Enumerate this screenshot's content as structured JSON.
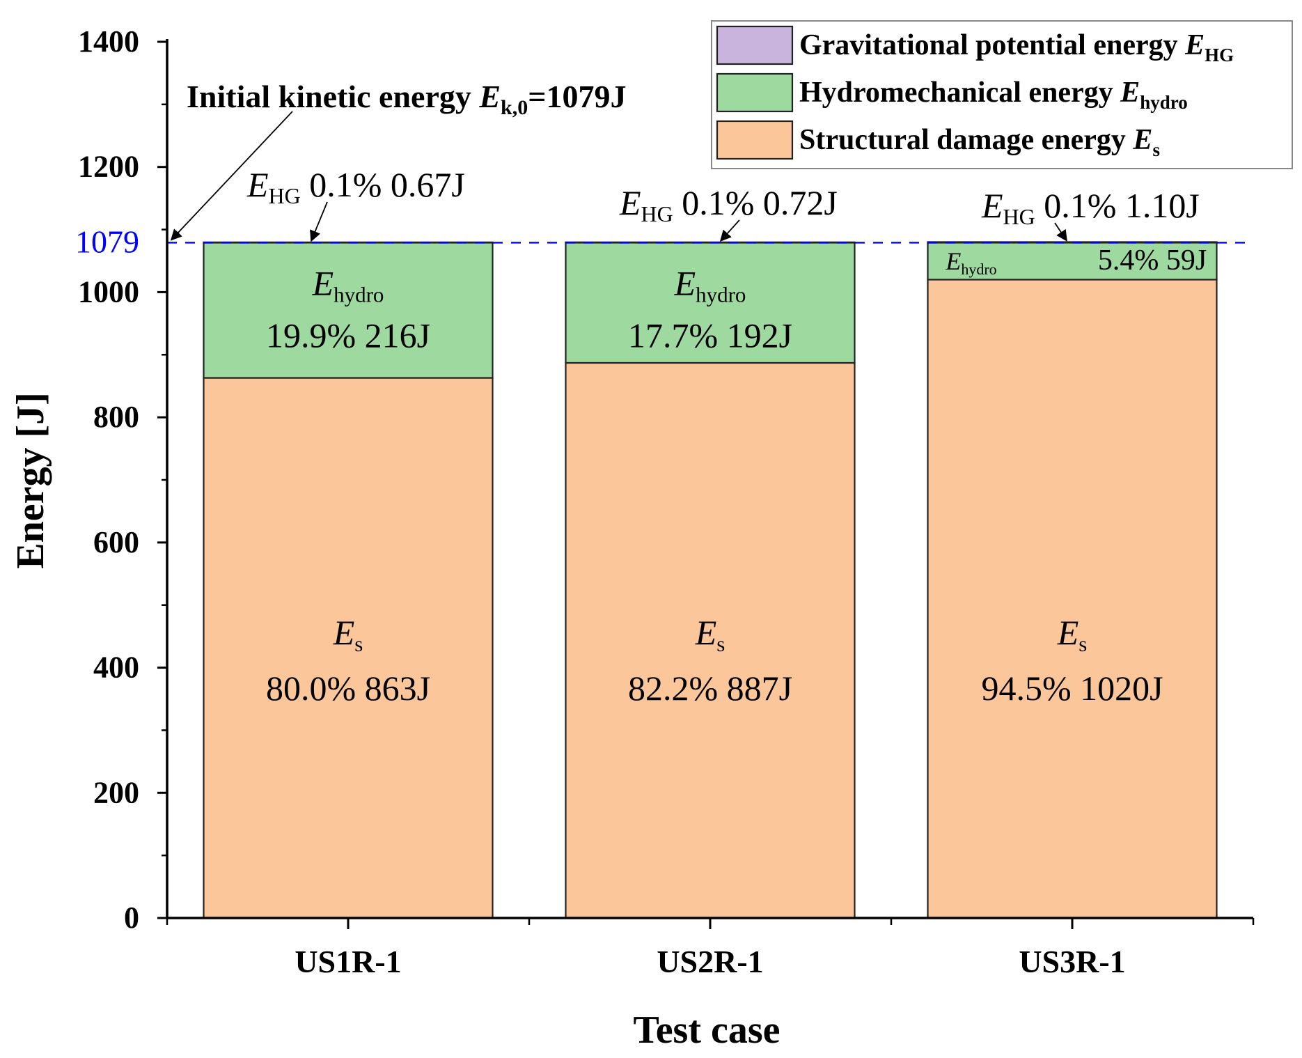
{
  "chart_data": {
    "type": "bar",
    "stacked": true,
    "categories": [
      "US1R-1",
      "US2R-1",
      "US3R-1"
    ],
    "series": [
      {
        "name": "Structural damage energy",
        "sym": "E",
        "sub": "s",
        "color": "#FBC699",
        "values": [
          863,
          887,
          1020
        ],
        "percents": [
          "80.0%",
          "82.2%",
          "94.5%"
        ],
        "labels": [
          "863J",
          "887J",
          "1020J"
        ]
      },
      {
        "name": "Hydromechanical energy",
        "sym": "E",
        "sub": "hydro",
        "color": "#9ED9A0",
        "values": [
          216,
          192,
          59
        ],
        "percents": [
          "19.9%",
          "17.7%",
          "5.4%"
        ],
        "labels": [
          "216J",
          "192J",
          "59J"
        ]
      },
      {
        "name": "Gravitational potential energy",
        "sym": "E",
        "sub": "HG",
        "color": "#C8B4DC",
        "values": [
          0.67,
          0.72,
          1.1
        ],
        "percents": [
          "0.1%",
          "0.1%",
          "0.1%"
        ],
        "labels": [
          "0.67J",
          "0.72J",
          "1.10J"
        ]
      }
    ],
    "legend_order": [
      2,
      1,
      0
    ],
    "legend_position": "top-right",
    "xlabel": "Test case",
    "ylabel": "Energy [J]",
    "ylim": [
      0,
      1400
    ],
    "yticks": [
      0,
      200,
      400,
      600,
      800,
      1000,
      1200,
      1400
    ],
    "reference_line": {
      "value": 1079,
      "label": "1079",
      "color": "#0000FF"
    },
    "annotation": {
      "text_before": "Initial kinetic energy ",
      "sym": "E",
      "sub": "k,0",
      "text_after": "=1079J"
    }
  }
}
